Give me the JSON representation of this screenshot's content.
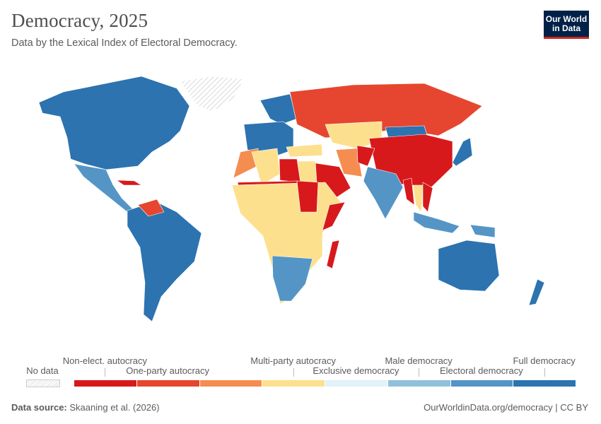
{
  "header": {
    "title": "Democracy, 2025",
    "subtitle": "Data by the Lexical Index of Electoral Democracy.",
    "logo_line1": "Our World",
    "logo_line2": "in Data"
  },
  "legend": {
    "no_data_label": "No data",
    "bins": [
      {
        "color": "#d7191c",
        "label": "Non-elect. autocracy",
        "row": "top"
      },
      {
        "color": "#e6462f",
        "label": "One-party autocracy",
        "row": "bottom"
      },
      {
        "color": "#f58d51",
        "label": ""
      },
      {
        "color": "#fde08e",
        "label": "Multi-party autocracy",
        "row": "top"
      },
      {
        "color": "#e1f2f8",
        "label": "Exclusive democracy",
        "row": "bottom"
      },
      {
        "color": "#8fc0dc",
        "label": "Male democracy",
        "row": "top"
      },
      {
        "color": "#5495c6",
        "label": "Electoral democracy",
        "row": "bottom"
      },
      {
        "color": "#2c73b0",
        "label": "Full democracy",
        "row": "top"
      }
    ]
  },
  "map": {
    "no_data_color": "#e8e8e8",
    "regions": [
      {
        "name": "North America",
        "category": 7
      },
      {
        "name": "Greenland",
        "category": null
      },
      {
        "name": "Mexico & Central America",
        "category": 6
      },
      {
        "name": "Cuba",
        "category": 0
      },
      {
        "name": "South America",
        "category": 7
      },
      {
        "name": "Venezuela",
        "category": 1
      },
      {
        "name": "Scandinavia",
        "category": 7
      },
      {
        "name": "Europe",
        "category": 7
      },
      {
        "name": "Russia",
        "category": 1
      },
      {
        "name": "Central Asia",
        "category": 3
      },
      {
        "name": "Mongolia",
        "category": 7
      },
      {
        "name": "China",
        "category": 0
      },
      {
        "name": "Turkey",
        "category": 3
      },
      {
        "name": "Iran",
        "category": 2
      },
      {
        "name": "Afghanistan",
        "category": 0
      },
      {
        "name": "Saudi Arabia",
        "category": 0
      },
      {
        "name": "India",
        "category": 6
      },
      {
        "name": "Myanmar",
        "category": 0
      },
      {
        "name": "Thailand",
        "category": 3
      },
      {
        "name": "Vietnam",
        "category": 0
      },
      {
        "name": "Morocco",
        "category": 2
      },
      {
        "name": "Algeria",
        "category": 3
      },
      {
        "name": "Libya",
        "category": 0
      },
      {
        "name": "Egypt",
        "category": 3
      },
      {
        "name": "Sahel",
        "category": 0
      },
      {
        "name": "Sub-Saharan Africa",
        "category": 3
      },
      {
        "name": "Sudan",
        "category": 0
      },
      {
        "name": "Somalia",
        "category": 0
      },
      {
        "name": "Southern Africa",
        "category": 6
      },
      {
        "name": "Madagascar",
        "category": 0
      },
      {
        "name": "Japan",
        "category": 7
      },
      {
        "name": "Indonesia",
        "category": 6
      },
      {
        "name": "Papua New Guinea",
        "category": 6
      },
      {
        "name": "Australia",
        "category": 7
      },
      {
        "name": "New Zealand",
        "category": 7
      }
    ]
  },
  "footer": {
    "source_label": "Data source:",
    "source_value": "Skaaning et al. (2026)",
    "credit": "OurWorldinData.org/democracy | CC BY"
  }
}
